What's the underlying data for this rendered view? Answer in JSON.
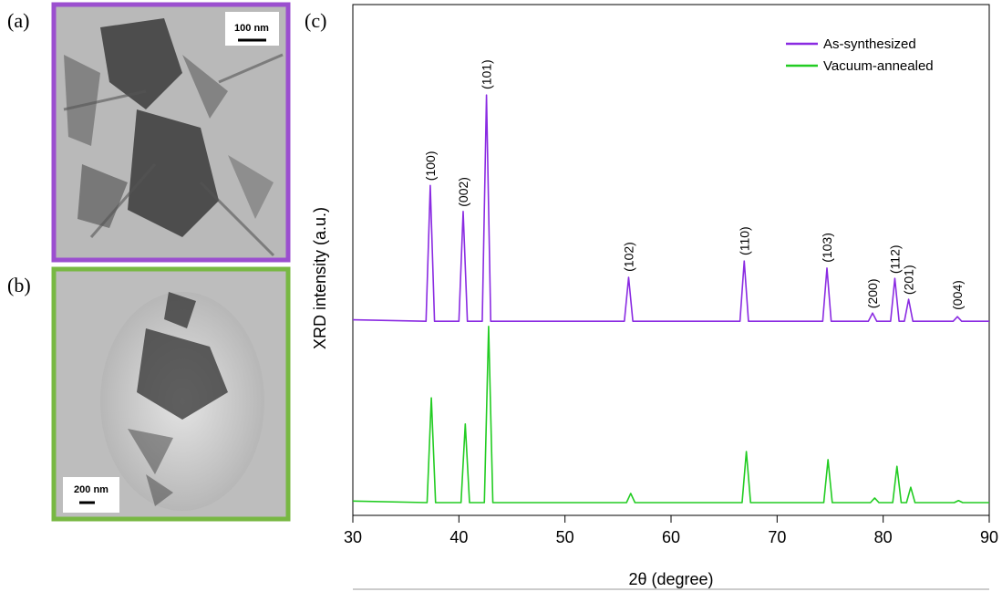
{
  "panels": [
    {
      "label": "(a)",
      "scale_bar": "100 nm",
      "border": "#9b4fcf"
    },
    {
      "label": "(b)",
      "scale_bar": "200 nm",
      "border": "#78b843"
    }
  ],
  "chart_data": {
    "type": "line",
    "panel_label": "(c)",
    "xlabel": "2θ (degree)",
    "ylabel": "XRD intensity (a.u.)",
    "xlim": [
      30,
      90
    ],
    "xticks": [
      30,
      40,
      50,
      60,
      70,
      80,
      90
    ],
    "ylim": [
      0,
      100
    ],
    "legend": "upper right",
    "series": [
      {
        "name": "As-synthesized",
        "color": "#8a2be2",
        "x": [
          30,
          36.9,
          37.3,
          37.7,
          40.0,
          40.4,
          40.8,
          42.2,
          42.6,
          43.0,
          55.6,
          56.0,
          56.4,
          66.5,
          66.9,
          67.3,
          74.3,
          74.7,
          75.1,
          78.6,
          79.0,
          79.4,
          80.7,
          81.1,
          81.5,
          82.0,
          82.4,
          82.8,
          86.6,
          87.0,
          87.4,
          90
        ],
        "values": [
          38.3,
          38,
          64.6,
          38,
          38,
          59.5,
          38,
          38,
          82.3,
          38,
          38,
          46.6,
          38,
          38,
          49.8,
          38,
          38,
          48.4,
          38,
          38,
          39.6,
          38,
          38,
          46.4,
          38,
          38,
          42.3,
          38,
          38,
          38.9,
          38,
          38
        ]
      },
      {
        "name": "Vacuum-annealed",
        "color": "#22cc22",
        "x": [
          30,
          37.0,
          37.4,
          37.8,
          40.2,
          40.6,
          41.0,
          42.4,
          42.8,
          43.2,
          55.8,
          56.2,
          56.6,
          66.7,
          67.1,
          67.5,
          74.4,
          74.8,
          75.2,
          78.8,
          79.2,
          79.6,
          80.9,
          81.3,
          81.7,
          82.2,
          82.6,
          83.0,
          86.7,
          87.1,
          87.5,
          90
        ],
        "values": [
          2.8,
          2.5,
          23.0,
          2.5,
          2.5,
          17.9,
          2.5,
          2.5,
          37.0,
          2.5,
          2.5,
          4.3,
          2.5,
          2.5,
          12.5,
          2.5,
          2.5,
          10.9,
          2.5,
          2.5,
          3.4,
          2.5,
          2.5,
          9.6,
          2.5,
          2.5,
          5.5,
          2.5,
          2.5,
          2.9,
          2.5,
          2.5
        ]
      }
    ],
    "annotations": [
      {
        "text": "(100)",
        "x": 37.3,
        "y": 65.5
      },
      {
        "text": "(002)",
        "x": 40.4,
        "y": 60.4
      },
      {
        "text": "(101)",
        "x": 42.6,
        "y": 83.4
      },
      {
        "text": "(102)",
        "x": 56.0,
        "y": 47.7
      },
      {
        "text": "(110)",
        "x": 66.9,
        "y": 50.9
      },
      {
        "text": "(103)",
        "x": 74.7,
        "y": 49.5
      },
      {
        "text": "(200)",
        "x": 79.0,
        "y": 40.5
      },
      {
        "text": "(112)",
        "x": 81.1,
        "y": 47.3
      },
      {
        "text": "(201)",
        "x": 82.4,
        "y": 43.2
      },
      {
        "text": "(004)",
        "x": 87.0,
        "y": 40.2
      }
    ]
  }
}
